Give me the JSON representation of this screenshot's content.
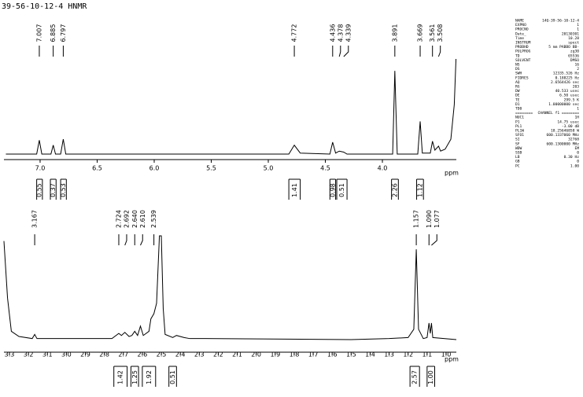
{
  "title": "39-56-10-12-4 HNMR",
  "parameters": {
    "rows": [
      [
        "NAME",
        "14Q-39-56-10-12-4"
      ],
      [
        "EXPNO",
        "1"
      ],
      [
        "PROCNO",
        "1"
      ],
      [
        "Date_",
        "20130301"
      ],
      [
        "Time",
        "10.28"
      ],
      [
        "INSTRUM",
        "spect"
      ],
      [
        "PROBHD",
        "5 mm PABBO BB-"
      ],
      [
        "PULPROG",
        "zg30"
      ],
      [
        "TD",
        "65536"
      ],
      [
        "SOLVENT",
        "DMSO"
      ],
      [
        "NS",
        "16"
      ],
      [
        "DS",
        "2"
      ],
      [
        "SWH",
        "12335.526 Hz"
      ],
      [
        "FIDRES",
        "0.188225 Hz"
      ],
      [
        "AQ",
        "2.6564426 sec"
      ],
      [
        "RG",
        "203"
      ],
      [
        "DW",
        "40.533 usec"
      ],
      [
        "DE",
        "6.50 usec"
      ],
      [
        "TE",
        "299.5 K"
      ],
      [
        "D1",
        "1.00000000 sec"
      ],
      [
        "TD0",
        "1"
      ],
      [
        "========",
        "CHANNEL f1 ========"
      ],
      [
        "NUC1",
        "1H"
      ],
      [
        "P1",
        "14.75 usec"
      ],
      [
        "PL1",
        "-3.00 dB"
      ],
      [
        "PL1W",
        "18.25646858 W"
      ],
      [
        "SFO1",
        "600.1337060 MHz"
      ],
      [
        "SI",
        "32768"
      ],
      [
        "SF",
        "600.1300000 MHz"
      ],
      [
        "WDW",
        "EM"
      ],
      [
        "SSB",
        "0"
      ],
      [
        "LB",
        "0.30 Hz"
      ],
      [
        "GB",
        "0"
      ],
      [
        "PC",
        "1.00"
      ]
    ]
  },
  "chart_data": [
    {
      "type": "line",
      "x_label": "ppm",
      "color": "#000000",
      "xlim": [
        7.317,
        3.352
      ],
      "ylim": [
        0,
        100
      ],
      "xticks": [
        {
          "value": 7,
          "label": "7.0"
        },
        6.5,
        {
          "value": 6,
          "label": "6.0"
        },
        5.5,
        {
          "value": 5,
          "label": "5.0"
        },
        4.5,
        {
          "value": 4,
          "label": "4.0"
        }
      ],
      "x": [
        7.3,
        7.03,
        7.007,
        6.985,
        6.905,
        6.885,
        6.865,
        6.82,
        6.797,
        6.775,
        4.82,
        4.772,
        4.72,
        4.46,
        4.436,
        4.41,
        4.378,
        4.339,
        4.31,
        3.91,
        3.891,
        3.87,
        3.69,
        3.669,
        3.65,
        3.58,
        3.561,
        3.54,
        3.508,
        3.49,
        3.45,
        3.4,
        3.37,
        3.355
      ],
      "values": [
        0,
        0,
        14,
        0,
        0,
        9,
        0,
        0,
        15,
        0,
        0,
        9,
        1,
        0,
        12,
        1,
        3,
        2,
        0,
        0,
        84,
        0,
        0,
        33,
        1,
        1,
        13,
        4,
        8,
        3,
        5,
        15,
        50,
        96
      ],
      "peaks": [
        7.007,
        6.885,
        6.797,
        4.772,
        4.436,
        4.378,
        4.339,
        3.891,
        3.669,
        3.561,
        3.508
      ],
      "integrals": [
        {
          "value": 0.55,
          "from": 7.03,
          "to": 6.98
        },
        {
          "value": 0.37,
          "from": 6.91,
          "to": 6.86
        },
        {
          "value": 0.53,
          "from": 6.82,
          "to": 6.77
        },
        {
          "value": 1.41,
          "from": 4.82,
          "to": 4.72
        },
        {
          "value": 0.98,
          "from": 4.46,
          "to": 4.41
        },
        {
          "value": 0.51,
          "from": 4.4,
          "to": 4.31
        },
        {
          "value": 2.26,
          "from": 3.92,
          "to": 3.86
        },
        {
          "value": 1.12,
          "from": 3.7,
          "to": 3.64
        }
      ]
    },
    {
      "type": "line",
      "x_label": "ppm",
      "color": "#000000",
      "xlim": [
        3.329,
        0.946
      ],
      "ylim": [
        0,
        100
      ],
      "xticks": [
        3.3,
        3.2,
        3.1,
        {
          "value": 3,
          "label": "3.0"
        },
        2.9,
        2.8,
        2.7,
        2.6,
        2.5,
        2.4,
        2.3,
        2.2,
        2.1,
        {
          "value": 2,
          "label": "2.0"
        },
        1.9,
        1.8,
        1.7,
        1.6,
        1.5,
        1.4,
        1.3,
        1.2,
        1.1,
        {
          "value": 1,
          "label": "1.0"
        }
      ],
      "x": [
        3.329,
        3.31,
        3.29,
        3.25,
        3.18,
        3.167,
        3.155,
        2.76,
        2.724,
        2.71,
        2.692,
        2.67,
        2.655,
        2.64,
        2.625,
        2.61,
        2.595,
        2.565,
        2.555,
        2.539,
        2.525,
        2.51,
        2.5,
        2.49,
        2.48,
        2.44,
        2.42,
        2.38,
        2.35,
        2.27,
        1.5,
        1.3,
        1.2,
        1.17,
        1.157,
        1.145,
        1.12,
        1.1,
        1.09,
        1.083,
        1.077,
        1.07,
        0.946
      ],
      "values": [
        95,
        40,
        8,
        3,
        1,
        5,
        1,
        1,
        6,
        4,
        7,
        3,
        4,
        8,
        4,
        13,
        4,
        8,
        20,
        25,
        35,
        100,
        100,
        30,
        5,
        2,
        4,
        2,
        1,
        1,
        0,
        1,
        2,
        10,
        87,
        10,
        1,
        2,
        16,
        6,
        16,
        2,
        0
      ],
      "peaks": [
        3.167,
        2.724,
        2.692,
        {
          "value": 2.64,
          "label": "2.640"
        },
        {
          "value": 2.61,
          "label": "2.610"
        },
        2.539,
        1.157,
        {
          "value": 1.09,
          "label": "1.090"
        },
        1.077
      ],
      "integrals": [
        {
          "value": 1.42,
          "from": 2.75,
          "to": 2.68
        },
        {
          "value": 1.25,
          "from": 2.66,
          "to": 2.62
        },
        {
          "value": 1.92,
          "from": 2.6,
          "to": 2.53
        },
        {
          "value": 0.51,
          "from": 2.46,
          "to": 2.42
        },
        {
          "value": 2.57,
          "from": 1.19,
          "to": 1.14
        },
        {
          "value": 1,
          "label": "1.00",
          "from": 1.1,
          "to": 1.06
        }
      ]
    }
  ]
}
